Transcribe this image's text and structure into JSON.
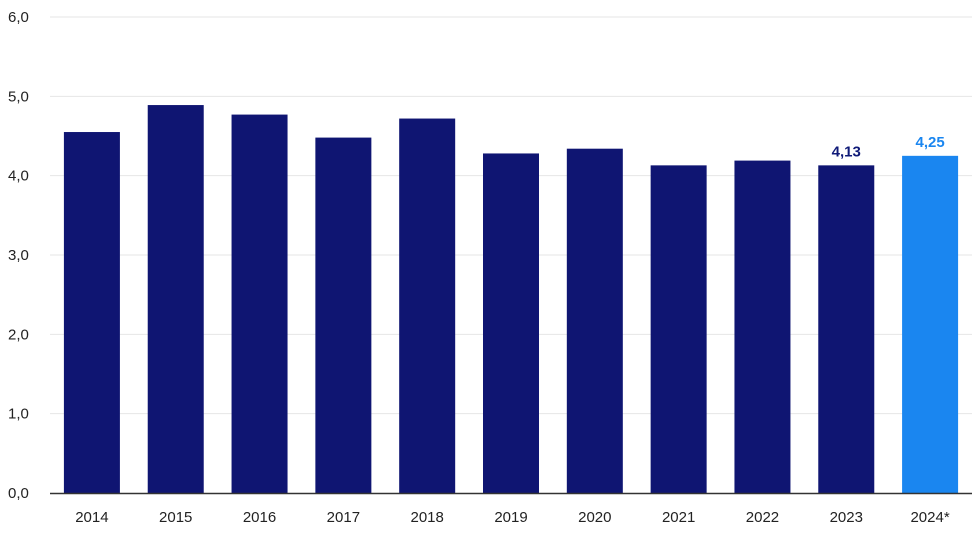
{
  "chart_data": {
    "type": "bar",
    "categories": [
      "2014",
      "2015",
      "2016",
      "2017",
      "2018",
      "2019",
      "2020",
      "2021",
      "2022",
      "2023",
      "2024*"
    ],
    "values": [
      4.55,
      4.89,
      4.77,
      4.48,
      4.72,
      4.28,
      4.34,
      4.13,
      4.19,
      4.13,
      4.25
    ],
    "y_ticks": [
      "0,0",
      "1,0",
      "2,0",
      "3,0",
      "4,0",
      "5,0",
      "6,0"
    ],
    "ylim": [
      0,
      6
    ],
    "grid": true,
    "data_labels": [
      {
        "category": "2023",
        "text": "4,13",
        "color": "#0f1a78"
      },
      {
        "category": "2024*",
        "text": "4,25",
        "color": "#1a86f0"
      }
    ],
    "colors": {
      "bar": "#0f1572",
      "highlight_bar": "#1a86f0",
      "grid": "#e6e6e6",
      "axis": "#333333"
    },
    "highlight_category": "2024*"
  }
}
